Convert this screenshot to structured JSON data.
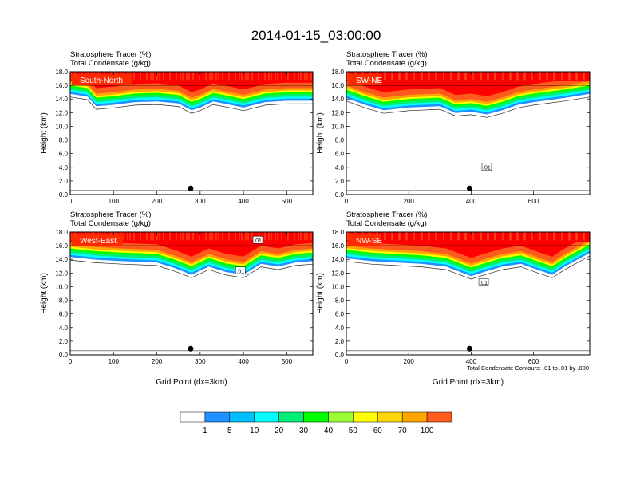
{
  "title": "2014-01-15_03:00:00",
  "colors": {
    "levels": [
      "#ffffff",
      "#1e90ff",
      "#00bfff",
      "#00ffff",
      "#00ee76",
      "#00ff00",
      "#9aff32",
      "#ffff00",
      "#ffd700",
      "#ffa500",
      "#ff5a1e",
      "#ff0000"
    ],
    "contour": "#000000",
    "panel_label_bg": "#ff2a00"
  },
  "chart_data": [
    {
      "type": "heatmap",
      "panel": "South-North",
      "title_lines": [
        "Stratosphere Tracer   (%)",
        "Total Condensate   (g/kg)"
      ],
      "ylabel": "Height (km)",
      "xlabel": "",
      "xlim": [
        0,
        560
      ],
      "ylim": [
        0,
        18
      ],
      "xticks": [
        0,
        100,
        200,
        300,
        400,
        500
      ],
      "yticks": [
        "0.0",
        "2.0",
        "4.0",
        "6.0",
        "8.0",
        "10.0",
        "12.0",
        "14.0",
        "16.0",
        "18.0"
      ],
      "marker_x": 278,
      "contour_labels": [],
      "tropopause": [
        [
          0,
          15.6
        ],
        [
          40,
          15.2
        ],
        [
          60,
          13.8
        ],
        [
          100,
          14.0
        ],
        [
          150,
          14.4
        ],
        [
          200,
          14.5
        ],
        [
          250,
          14.2
        ],
        [
          280,
          13.2
        ],
        [
          300,
          13.6
        ],
        [
          330,
          14.5
        ],
        [
          370,
          14.0
        ],
        [
          400,
          13.6
        ],
        [
          450,
          14.4
        ],
        [
          500,
          14.6
        ],
        [
          560,
          14.6
        ]
      ]
    },
    {
      "type": "heatmap",
      "panel": "SW-NE",
      "title_lines": [
        "Stratosphere Tracer   (%)",
        "Total Condensate   (g/kg)"
      ],
      "ylabel": "Height (km)",
      "xlabel": "",
      "xlim": [
        0,
        780
      ],
      "ylim": [
        0,
        18
      ],
      "xticks": [
        0,
        200,
        400,
        600
      ],
      "yticks": [
        "0.0",
        "2.0",
        "4.0",
        "6.0",
        "8.0",
        "10.0",
        "12.0",
        "14.0",
        "16.0",
        "18.0"
      ],
      "marker_x": 395,
      "contour_labels": [
        {
          "text": ".01",
          "x": 450,
          "y": 4.0
        }
      ],
      "tropopause": [
        [
          0,
          15.0
        ],
        [
          60,
          14.0
        ],
        [
          120,
          13.2
        ],
        [
          200,
          13.6
        ],
        [
          300,
          13.8
        ],
        [
          350,
          12.8
        ],
        [
          400,
          13.0
        ],
        [
          450,
          12.6
        ],
        [
          500,
          13.2
        ],
        [
          550,
          14.0
        ],
        [
          600,
          14.4
        ],
        [
          700,
          15.0
        ],
        [
          780,
          15.6
        ]
      ]
    },
    {
      "type": "heatmap",
      "panel": "West-East",
      "title_lines": [
        "Stratosphere Tracer   (%)",
        "Total Condensate   (g/kg)"
      ],
      "ylabel": "Height (km)",
      "xlabel": "Grid Point (dx=3km)",
      "xlim": [
        0,
        560
      ],
      "ylim": [
        0,
        18
      ],
      "xticks": [
        0,
        100,
        200,
        300,
        400,
        500
      ],
      "yticks": [
        "0.0",
        "2.0",
        "4.0",
        "6.0",
        "8.0",
        "10.0",
        "12.0",
        "14.0",
        "16.0",
        "18.0"
      ],
      "marker_x": 278,
      "contour_labels": [
        {
          "text": ".01",
          "x": 433,
          "y": 16.8
        },
        {
          "text": ".01",
          "x": 393,
          "y": 12.3
        }
      ],
      "tropopause": [
        [
          0,
          15.2
        ],
        [
          60,
          14.8
        ],
        [
          120,
          14.6
        ],
        [
          200,
          14.4
        ],
        [
          240,
          13.6
        ],
        [
          280,
          12.6
        ],
        [
          320,
          13.8
        ],
        [
          360,
          13.0
        ],
        [
          400,
          12.6
        ],
        [
          440,
          14.2
        ],
        [
          480,
          13.8
        ],
        [
          520,
          14.4
        ],
        [
          560,
          14.6
        ]
      ]
    },
    {
      "type": "heatmap",
      "panel": "NW-SE",
      "title_lines": [
        "Stratosphere Tracer   (%)",
        "Total Condensate   (g/kg)"
      ],
      "ylabel": "Height (km)",
      "xlabel": "Grid Point (dx=3km)",
      "xlim": [
        0,
        780
      ],
      "ylim": [
        0,
        18
      ],
      "xticks": [
        0,
        200,
        400,
        600
      ],
      "yticks": [
        "0.0",
        "2.0",
        "4.0",
        "6.0",
        "8.0",
        "10.0",
        "12.0",
        "14.0",
        "16.0",
        "18.0"
      ],
      "marker_x": 395,
      "contour_labels": [
        {
          "text": ".01",
          "x": 440,
          "y": 10.6
        }
      ],
      "tropopause": [
        [
          0,
          15.0
        ],
        [
          80,
          14.6
        ],
        [
          160,
          14.4
        ],
        [
          240,
          14.2
        ],
        [
          320,
          13.8
        ],
        [
          400,
          12.4
        ],
        [
          440,
          13.0
        ],
        [
          500,
          13.8
        ],
        [
          560,
          14.2
        ],
        [
          620,
          13.2
        ],
        [
          660,
          12.6
        ],
        [
          700,
          13.8
        ],
        [
          780,
          15.8
        ]
      ]
    }
  ],
  "colorbar": {
    "labels": [
      "1",
      "5",
      "10",
      "20",
      "30",
      "40",
      "50",
      "60",
      "70",
      "100"
    ]
  },
  "footnote": "Total Condensate Contours: .01 to .01 by .000"
}
